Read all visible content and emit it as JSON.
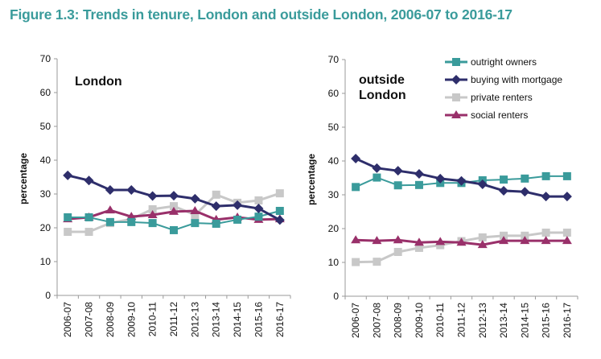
{
  "figure_title": "Figure 1.3: Trends in tenure, London and outside London, 2006-07 to 2016-17",
  "chart_data": [
    {
      "type": "line",
      "title": "London",
      "title_lines": [
        "London"
      ],
      "xlabel": "",
      "ylabel": "percentage",
      "ylim": [
        0,
        70
      ],
      "yticks": [
        0,
        10,
        20,
        30,
        40,
        50,
        60,
        70
      ],
      "grid": false,
      "legend": null,
      "categories": [
        "2006-07",
        "2007-08",
        "2008-09",
        "2009-10",
        "2010-11",
        "2011-12",
        "2012-13",
        "2013-14",
        "2014-15",
        "2015-16",
        "2016-17"
      ],
      "series": [
        {
          "name": "outright owners",
          "color": "#3A9B9B",
          "marker": "square",
          "values": [
            23.1,
            23.1,
            21.7,
            21.7,
            21.4,
            19.3,
            21.4,
            21.2,
            22.4,
            23.3,
            25.0
          ]
        },
        {
          "name": "buying with mortgage",
          "color": "#2E2E6B",
          "marker": "diamond",
          "values": [
            35.5,
            34.0,
            31.2,
            31.2,
            29.4,
            29.5,
            28.6,
            26.4,
            26.7,
            25.7,
            22.3
          ]
        },
        {
          "name": "private renters",
          "color": "#C8C8C8",
          "marker": "square",
          "values": [
            18.8,
            18.8,
            21.4,
            22.6,
            25.5,
            26.4,
            23.8,
            29.8,
            27.4,
            28.1,
            30.2
          ]
        },
        {
          "name": "social renters",
          "color": "#99306A",
          "marker": "triangle",
          "values": [
            22.6,
            23.1,
            25.2,
            23.3,
            23.8,
            24.8,
            25.0,
            22.4,
            23.1,
            22.4,
            22.6
          ]
        }
      ]
    },
    {
      "type": "line",
      "title": "outside London",
      "title_lines": [
        "outside",
        "London"
      ],
      "xlabel": "",
      "ylabel": "percentage",
      "ylim": [
        0,
        70
      ],
      "yticks": [
        0,
        10,
        20,
        30,
        40,
        50,
        60,
        70
      ],
      "grid": false,
      "legend": "top-right",
      "categories": [
        "2006-07",
        "2007-08",
        "2008-09",
        "2009-10",
        "2010-11",
        "2011-12",
        "2012-13",
        "2013-14",
        "2014-15",
        "2015-16",
        "2016-17"
      ],
      "series": [
        {
          "name": "outright owners",
          "color": "#3A9B9B",
          "marker": "square",
          "values": [
            32.3,
            35.1,
            32.8,
            32.9,
            33.5,
            33.5,
            34.3,
            34.5,
            34.8,
            35.5,
            35.5
          ]
        },
        {
          "name": "buying with mortgage",
          "color": "#2E2E6B",
          "marker": "diamond",
          "values": [
            40.7,
            37.9,
            37.1,
            36.2,
            34.8,
            34.1,
            33.1,
            31.2,
            30.9,
            29.5,
            29.5
          ]
        },
        {
          "name": "private renters",
          "color": "#C8C8C8",
          "marker": "square",
          "values": [
            10.1,
            10.2,
            13.1,
            14.3,
            15.1,
            16.3,
            17.4,
            17.9,
            17.9,
            18.8,
            18.8
          ]
        },
        {
          "name": "social renters",
          "color": "#99306A",
          "marker": "triangle",
          "values": [
            16.6,
            16.4,
            16.6,
            15.9,
            16.1,
            15.9,
            15.2,
            16.4,
            16.4,
            16.4,
            16.4
          ]
        }
      ]
    }
  ]
}
